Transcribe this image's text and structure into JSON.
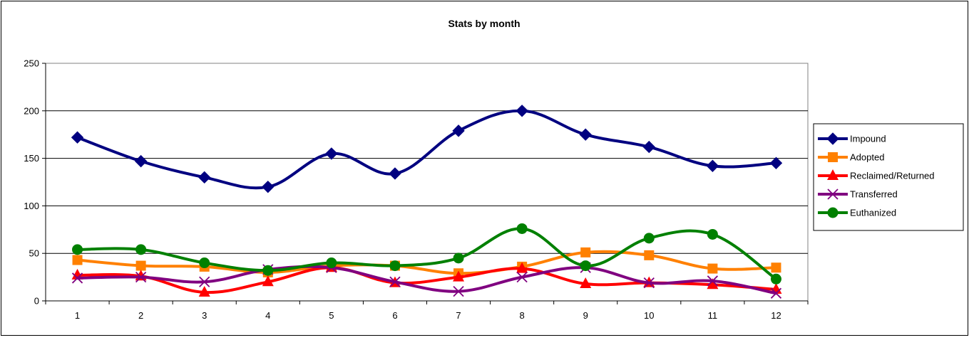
{
  "chart_data": {
    "type": "line",
    "title": "Stats by month",
    "xlabel": "",
    "ylabel": "",
    "categories": [
      "1",
      "2",
      "3",
      "4",
      "5",
      "6",
      "7",
      "8",
      "9",
      "10",
      "11",
      "12"
    ],
    "ylim": [
      0,
      250
    ],
    "yticks": [
      "0",
      "50",
      "100",
      "150",
      "200",
      "250"
    ],
    "grid": "horizontal",
    "legend_position": "right",
    "series": [
      {
        "name": "Impound",
        "color": "#000080",
        "marker": "diamond",
        "values": [
          172,
          147,
          130,
          120,
          155,
          134,
          179,
          200,
          175,
          162,
          142,
          145
        ]
      },
      {
        "name": "Adopted",
        "color": "#FF8000",
        "marker": "square",
        "values": [
          43,
          37,
          36,
          30,
          37,
          37,
          29,
          36,
          51,
          48,
          34,
          35
        ]
      },
      {
        "name": "Reclaimed/Returned",
        "color": "#FF0000",
        "marker": "triangle",
        "values": [
          27,
          26,
          9,
          20,
          35,
          19,
          25,
          34,
          18,
          19,
          17,
          12
        ]
      },
      {
        "name": "Transferred",
        "color": "#800080",
        "marker": "x",
        "values": [
          24,
          25,
          20,
          33,
          35,
          20,
          10,
          25,
          35,
          19,
          21,
          8
        ]
      },
      {
        "name": "Euthanized",
        "color": "#008000",
        "marker": "circle",
        "values": [
          54,
          54,
          40,
          32,
          40,
          37,
          45,
          76,
          37,
          66,
          70,
          23
        ]
      }
    ]
  }
}
